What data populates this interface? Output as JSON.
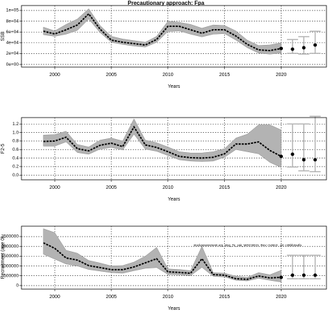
{
  "chart_data": [
    {
      "type": "line",
      "title": "Precautionary approach: Fpa",
      "ylabel": "SSB",
      "xlabel": "Years",
      "xlim": [
        1997.06,
        2024
      ],
      "xticks": [
        2000,
        2005,
        2010,
        2015,
        2020
      ],
      "ylim": [
        -5000,
        109000
      ],
      "yticks": [
        {
          "value": 0,
          "label": "0e+00"
        },
        {
          "value": 20000,
          "label": "2e+04"
        },
        {
          "value": 40000,
          "label": "4e+04"
        },
        {
          "value": 60000,
          "label": "6e+04"
        },
        {
          "value": 80000,
          "label": "8e+04"
        },
        {
          "value": 100000,
          "label": "1e+05"
        }
      ],
      "grid": true,
      "series": [
        {
          "style": "band",
          "color": "#000000",
          "band_color": "#b3b3b3",
          "x": [
            1999,
            2000,
            2001,
            2002,
            2003,
            2004,
            2005,
            2006,
            2007,
            2008,
            2009,
            2010,
            2011,
            2012,
            2013,
            2014,
            2015,
            2016,
            2017,
            2018,
            2019,
            2020
          ],
          "values": [
            61500,
            56400,
            64100,
            73000,
            93600,
            65400,
            44900,
            41000,
            38500,
            35900,
            46200,
            70500,
            70500,
            64100,
            57700,
            64100,
            64100,
            52600,
            37200,
            26900,
            25600,
            29500
          ],
          "lower": [
            55000,
            52000,
            56000,
            63000,
            84000,
            59000,
            41000,
            37000,
            34000,
            32000,
            41000,
            61000,
            62000,
            56000,
            51000,
            56000,
            57000,
            45000,
            31000,
            21000,
            19000,
            21000
          ],
          "upper": [
            69000,
            62000,
            74000,
            84000,
            103000,
            72000,
            52000,
            47000,
            44000,
            41000,
            52000,
            80000,
            78000,
            74000,
            67000,
            73000,
            72000,
            62000,
            45000,
            35000,
            36000,
            40000
          ]
        },
        {
          "style": "errorbar",
          "color": "#000000",
          "band_color": "#b3b3b3",
          "x": [
            2021,
            2022,
            2023
          ],
          "values": [
            28200,
            30800,
            35900
          ],
          "lower": [
            20500,
            19200,
            20500
          ],
          "upper": [
            46000,
            51300,
            61500
          ]
        }
      ]
    },
    {
      "type": "line",
      "ylabel": "F2-5",
      "xlabel": "Years",
      "xlim": [
        1997.06,
        2024
      ],
      "xticks": [
        2000,
        2005,
        2010,
        2015,
        2020
      ],
      "ylim": [
        -0.11,
        1.35
      ],
      "yticks": [
        {
          "value": 0,
          "label": "0.0"
        },
        0.2,
        0.4,
        0.6,
        0.8,
        {
          "value": 1,
          "label": "1.0"
        },
        1.2
      ],
      "grid": true,
      "series": [
        {
          "style": "band",
          "color": "#000000",
          "band_color": "#b3b3b3",
          "x": [
            1999,
            2000,
            2001,
            2002,
            2003,
            2004,
            2005,
            2006,
            2007,
            2008,
            2009,
            2010,
            2011,
            2012,
            2013,
            2014,
            2015,
            2016,
            2017,
            2018,
            2019,
            2020
          ],
          "values": [
            0.79,
            0.8,
            0.89,
            0.62,
            0.57,
            0.7,
            0.75,
            0.67,
            1.13,
            0.71,
            0.65,
            0.55,
            0.44,
            0.41,
            0.4,
            0.42,
            0.5,
            0.73,
            0.73,
            0.78,
            0.58,
            0.44
          ],
          "lower": [
            0.68,
            0.68,
            0.78,
            0.53,
            0.49,
            0.61,
            0.65,
            0.59,
            0.96,
            0.61,
            0.56,
            0.46,
            0.36,
            0.33,
            0.32,
            0.33,
            0.42,
            0.6,
            0.55,
            0.5,
            0.3,
            0.18
          ],
          "upper": [
            0.94,
            0.95,
            1.03,
            0.72,
            0.66,
            0.82,
            0.87,
            0.8,
            1.32,
            0.82,
            0.76,
            0.66,
            0.55,
            0.52,
            0.52,
            0.55,
            0.62,
            0.87,
            0.96,
            1.18,
            1.18,
            1.06
          ]
        },
        {
          "style": "errorbar",
          "color": "#000000",
          "band_color": "#b3b3b3",
          "x": [
            2021,
            2022,
            2023
          ],
          "values": [
            0.49,
            0.36,
            0.36
          ],
          "lower": [
            0.19,
            0.1,
            0.08
          ],
          "upper": [
            1.2,
            1.2,
            1.38
          ]
        }
      ]
    },
    {
      "type": "line",
      "ylabel": "Recruitment (age 0)",
      "xlabel": "Years",
      "annotation": "stockassessment.org, stsg_To_cak_WGCSE21, Rev: r14613 , git: c28bb2a4fa",
      "xlim": [
        1997.06,
        2024
      ],
      "xticks": [
        2000,
        2005,
        2010,
        2015,
        2020
      ],
      "ylim": [
        -180000,
        3030000
      ],
      "yticks": [
        0,
        500000,
        1000000,
        1500000,
        2000000,
        2500000
      ],
      "grid": true,
      "series": [
        {
          "style": "band",
          "color": "#000000",
          "band_color": "#b3b3b3",
          "x": [
            1999,
            2000,
            2001,
            2002,
            2003,
            2004,
            2005,
            2006,
            2007,
            2008,
            2009,
            2010,
            2011,
            2012,
            2013,
            2014,
            2015,
            2016,
            2017,
            2018,
            2019,
            2020
          ],
          "values": [
            2180000,
            1900000,
            1410000,
            1300000,
            1020000,
            920000,
            810000,
            810000,
            950000,
            1160000,
            1370000,
            700000,
            670000,
            630000,
            1370000,
            560000,
            530000,
            350000,
            320000,
            490000,
            390000,
            420000
          ],
          "lower": [
            1600000,
            1350000,
            1100000,
            1000000,
            820000,
            740000,
            660000,
            630000,
            760000,
            880000,
            920000,
            570000,
            550000,
            510000,
            930000,
            470000,
            440000,
            270000,
            240000,
            370000,
            270000,
            180000
          ],
          "upper": [
            2900000,
            2700000,
            1800000,
            1650000,
            1280000,
            1150000,
            1000000,
            1020000,
            1200000,
            1500000,
            1950000,
            850000,
            820000,
            760000,
            2000000,
            660000,
            630000,
            480000,
            420000,
            660000,
            550000,
            780000
          ]
        },
        {
          "style": "errorbar",
          "color": "#000000",
          "band_color": "#b3b3b3",
          "x": [
            2021,
            2022,
            2023
          ],
          "values": [
            530000,
            530000,
            530000
          ],
          "lower": [
            350000,
            350000,
            350000
          ],
          "upper": [
            1550000,
            1550000,
            1550000
          ]
        }
      ]
    }
  ]
}
